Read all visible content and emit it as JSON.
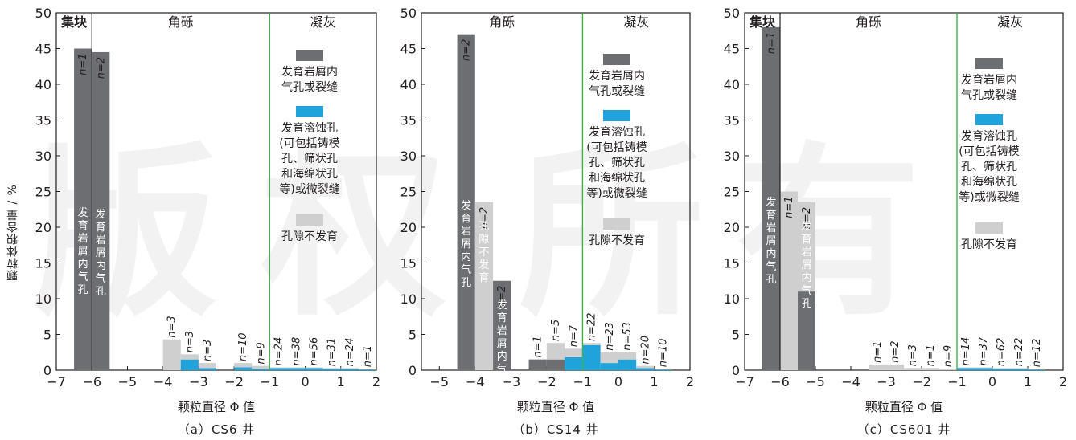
{
  "figure": {
    "ylabel": "颗粒体积含量 / %",
    "watermark": "版权所有"
  },
  "colors": {
    "dark": "#6d6e71",
    "blue": "#1fa3da",
    "light": "#cfcfcf",
    "green_line": "#3cb44b"
  },
  "legend": {
    "dark": "发育岩屑内气孔或裂缝",
    "blue": "发育溶蚀孔(可包括铸模孔、筛状孔和海绵状孔等)或微裂缝",
    "light": "孔隙不发育"
  },
  "chart_data": [
    {
      "type": "bar",
      "title": "（a）CS6 井",
      "xlabel": "颗粒直径 Φ 值",
      "ylabel": "颗粒体积含量 / %",
      "xlim": [
        -7,
        2
      ],
      "ylim": [
        0,
        50
      ],
      "xticks": [
        "−7",
        "−6",
        "−5",
        "−4",
        "−3",
        "−2",
        "−1",
        "0",
        "1",
        "2"
      ],
      "yticks": [
        "0",
        "5",
        "10",
        "15",
        "20",
        "25",
        "30",
        "35",
        "40",
        "45",
        "50"
      ],
      "bin_width": 0.5,
      "regions": [
        {
          "label": "集块",
          "x0": -7,
          "x1": -6
        },
        {
          "label": "角砾",
          "x0": -6,
          "x1": -1
        },
        {
          "label": "凝灰",
          "x0": -1,
          "x1": 2
        }
      ],
      "boundaries": [
        {
          "x": -6,
          "color": "dark"
        },
        {
          "x": -1,
          "color": "green"
        }
      ],
      "bars": [
        {
          "x0": -6.5,
          "dark": 45,
          "blue": 0,
          "light": 0,
          "n": "1",
          "text": "发育岩屑内气孔"
        },
        {
          "x0": -6.0,
          "dark": 44.5,
          "blue": 0,
          "light": 0,
          "n": "2",
          "text": "发育岩屑内气孔"
        },
        {
          "x0": -4.0,
          "dark": 0,
          "blue": 0,
          "light": 4.3,
          "n": "3"
        },
        {
          "x0": -3.5,
          "dark": 0,
          "blue": 1.5,
          "light": 0.7,
          "n": "3"
        },
        {
          "x0": -3.0,
          "dark": 0,
          "blue": 0.3,
          "light": 0.7,
          "n": "3"
        },
        {
          "x0": -2.0,
          "dark": 0,
          "blue": 0.4,
          "light": 0.6,
          "n": "10"
        },
        {
          "x0": -1.5,
          "dark": 0,
          "blue": 0.2,
          "light": 0.4,
          "n": "9"
        },
        {
          "x0": -1.0,
          "dark": 0,
          "blue": 0.3,
          "light": 0.1,
          "n": "24"
        },
        {
          "x0": -0.5,
          "dark": 0,
          "blue": 0.3,
          "light": 0.1,
          "n": "38"
        },
        {
          "x0": 0.0,
          "dark": 0,
          "blue": 0.3,
          "light": 0.1,
          "n": "56"
        },
        {
          "x0": 0.5,
          "dark": 0,
          "blue": 0.2,
          "light": 0.1,
          "n": "31"
        },
        {
          "x0": 1.0,
          "dark": 0,
          "blue": 0.2,
          "light": 0.1,
          "n": "24"
        },
        {
          "x0": 1.5,
          "dark": 0,
          "blue": 0.1,
          "light": 0.1,
          "n": "1"
        }
      ]
    },
    {
      "type": "bar",
      "title": "（b）CS14 井",
      "xlabel": "颗粒直径 Φ 值",
      "ylabel": "",
      "xlim": [
        -5.5,
        2
      ],
      "ylim": [
        0,
        50
      ],
      "xticks": [
        "−5",
        "−4",
        "−3",
        "−2",
        "−1",
        "0",
        "1",
        "2"
      ],
      "yticks": [
        "0",
        "5",
        "10",
        "15",
        "20",
        "25",
        "30",
        "35",
        "40",
        "45",
        "50"
      ],
      "bin_width": 0.5,
      "regions": [
        {
          "label": "角砾",
          "x0": -5.5,
          "x1": -1
        },
        {
          "label": "凝灰",
          "x0": -1,
          "x1": 2
        }
      ],
      "boundaries": [
        {
          "x": -1,
          "color": "green"
        }
      ],
      "bars": [
        {
          "x0": -4.5,
          "dark": 47,
          "blue": 0,
          "light": 0,
          "n": "2",
          "text": "发育岩屑内气孔"
        },
        {
          "x0": -4.0,
          "dark": 0,
          "blue": 0,
          "light": 23.5,
          "n": "2",
          "text": "孔隙不发育"
        },
        {
          "x0": -3.5,
          "dark": 12.5,
          "blue": 0,
          "light": 0,
          "n": "2",
          "text": "发育岩屑内气孔"
        },
        {
          "x0": -3.0,
          "dark": 0,
          "blue": 0,
          "light": 0,
          "n": ""
        },
        {
          "x0": -2.5,
          "dark": 1.5,
          "blue": 0,
          "light": 0,
          "n": "1"
        },
        {
          "x0": -2.0,
          "dark": 1.5,
          "blue": 0,
          "light": 2.3,
          "n": "5"
        },
        {
          "x0": -1.5,
          "dark": 0,
          "blue": 1.8,
          "light": 1.2,
          "n": "7"
        },
        {
          "x0": -1.0,
          "dark": 0,
          "blue": 3.5,
          "light": 0.3,
          "n": "22"
        },
        {
          "x0": -0.5,
          "dark": 0,
          "blue": 1.0,
          "light": 1.5,
          "n": "23"
        },
        {
          "x0": 0.0,
          "dark": 0,
          "blue": 1.5,
          "light": 1.0,
          "n": "53"
        },
        {
          "x0": 0.5,
          "dark": 0,
          "blue": 0.3,
          "light": 0.3,
          "n": "20"
        },
        {
          "x0": 1.0,
          "dark": 0,
          "blue": 0.1,
          "light": 0.1,
          "n": "10"
        }
      ]
    },
    {
      "type": "bar",
      "title": "（c）CS601 井",
      "xlabel": "颗粒直径 Φ 值",
      "ylabel": "",
      "xlim": [
        -7,
        2
      ],
      "ylim": [
        0,
        50
      ],
      "xticks": [
        "−7",
        "−6",
        "−5",
        "−4",
        "−3",
        "−2",
        "−1",
        "0",
        "1",
        "2"
      ],
      "yticks": [
        "0",
        "5",
        "10",
        "15",
        "20",
        "25",
        "30",
        "35",
        "40",
        "45",
        "50"
      ],
      "bin_width": 0.5,
      "regions": [
        {
          "label": "集块",
          "x0": -7,
          "x1": -6
        },
        {
          "label": "角砾",
          "x0": -6,
          "x1": -1
        },
        {
          "label": "凝灰",
          "x0": -1,
          "x1": 2
        }
      ],
      "boundaries": [
        {
          "x": -6,
          "color": "dark"
        },
        {
          "x": -1,
          "color": "green"
        }
      ],
      "bars": [
        {
          "x0": -6.5,
          "dark": 48,
          "blue": 0,
          "light": 0,
          "n": "1",
          "text": "发育岩屑内气孔"
        },
        {
          "x0": -6.0,
          "dark": 0,
          "blue": 0,
          "light": 25,
          "n": "1"
        },
        {
          "x0": -5.5,
          "dark": 11,
          "blue": 0,
          "light": 12.5,
          "n": "2",
          "text": "发育岩屑内气孔"
        },
        {
          "x0": -3.5,
          "dark": 0,
          "blue": 0,
          "light": 0.8,
          "n": "1"
        },
        {
          "x0": -3.0,
          "dark": 0,
          "blue": 0,
          "light": 0.8,
          "n": "2"
        },
        {
          "x0": -2.5,
          "dark": 0,
          "blue": 0,
          "light": 0.3,
          "n": "3"
        },
        {
          "x0": -2.0,
          "dark": 0,
          "blue": 0,
          "light": 0.3,
          "n": "1"
        },
        {
          "x0": -1.5,
          "dark": 0,
          "blue": 0,
          "light": 0.2,
          "n": "9"
        },
        {
          "x0": -1.0,
          "dark": 0,
          "blue": 0.3,
          "light": 0.1,
          "n": "14"
        },
        {
          "x0": -0.5,
          "dark": 0,
          "blue": 0.3,
          "light": 0.1,
          "n": "37"
        },
        {
          "x0": 0.0,
          "dark": 0,
          "blue": 0.2,
          "light": 0.1,
          "n": "62"
        },
        {
          "x0": 0.5,
          "dark": 0,
          "blue": 0.2,
          "light": 0.1,
          "n": "22"
        },
        {
          "x0": 1.0,
          "dark": 0,
          "blue": 0.1,
          "light": 0.1,
          "n": "12"
        }
      ]
    }
  ]
}
